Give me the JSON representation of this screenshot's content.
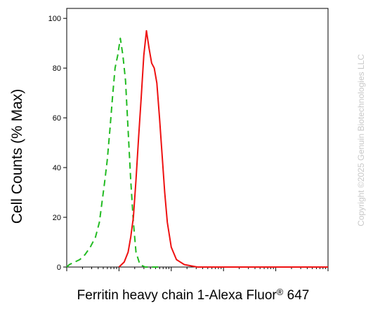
{
  "chart_data": {
    "type": "line",
    "xlabel": "Ferritin heavy chain 1-Alexa Fluor",
    "xlabel_sup": "®",
    "xlabel_tail": " 647",
    "ylabel": "Cell Counts (% Max)",
    "ylim": [
      0,
      104
    ],
    "yticks": [
      0,
      20,
      40,
      60,
      80,
      100
    ],
    "x_scale": "log",
    "xlim": [
      0,
      100
    ],
    "grid": false,
    "legend": "none",
    "watermark": "Copyright ©2025 Genuin Biotechnologies LLC",
    "series": [
      {
        "style": "dashed",
        "color": "#22bb22",
        "x": [
          0,
          1,
          3,
          5,
          7,
          9,
          11,
          12.5,
          13.5,
          14.5,
          15.5,
          16.5,
          17.5,
          18.5,
          19.5,
          20.5,
          21.5,
          22.5,
          23.5,
          24.5,
          25.5,
          26.5,
          28,
          30,
          32,
          35
        ],
        "y": [
          0,
          1,
          2,
          3,
          5,
          8,
          12,
          18,
          26,
          34,
          43,
          55,
          68,
          80,
          85,
          92,
          85,
          75,
          55,
          35,
          18,
          6,
          1,
          0,
          0,
          0
        ]
      },
      {
        "style": "solid",
        "color": "#ee1111",
        "x": [
          20,
          22,
          23.5,
          24.5,
          25.5,
          26.5,
          27.5,
          28.5,
          29.5,
          30.5,
          31.5,
          32.5,
          33.5,
          34.5,
          35.5,
          36.5,
          37.5,
          38.5,
          40,
          42,
          45,
          50,
          60,
          80,
          100
        ],
        "y": [
          0,
          2,
          6,
          12,
          20,
          35,
          52,
          68,
          85,
          95,
          88,
          82,
          80,
          74,
          60,
          45,
          30,
          18,
          8,
          3,
          1,
          0,
          0,
          0,
          0
        ]
      }
    ]
  }
}
